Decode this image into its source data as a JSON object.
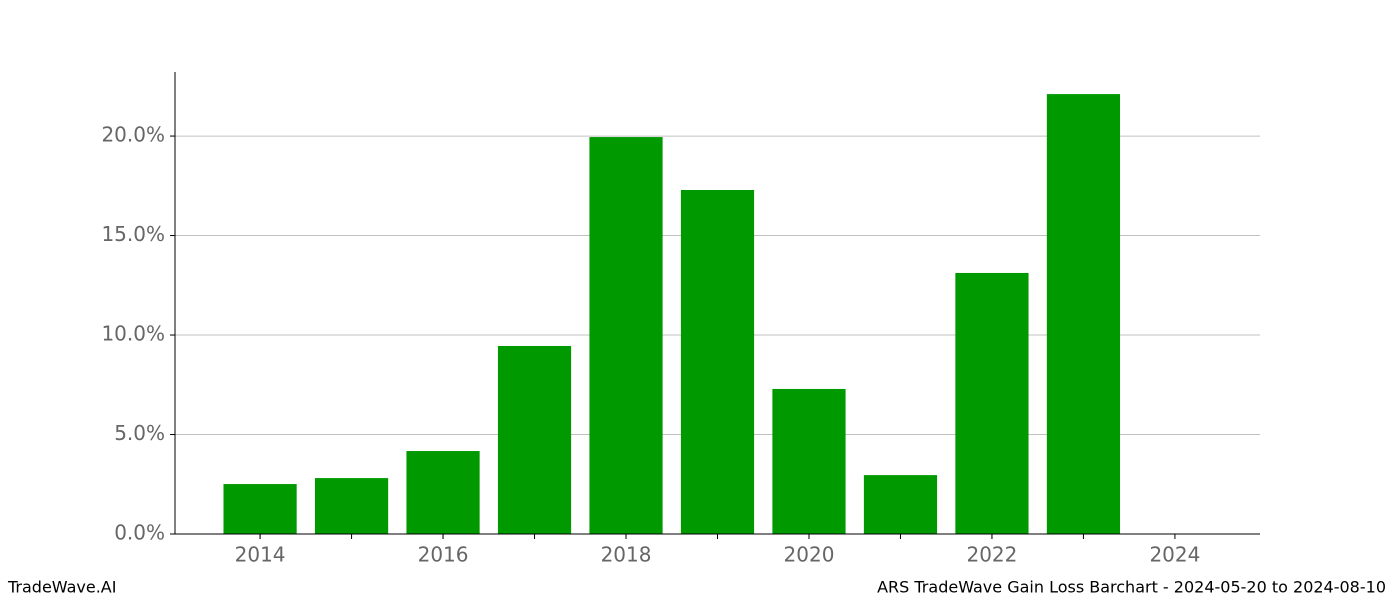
{
  "chart_data": {
    "type": "bar",
    "title": "ARS TradeWave Gain Loss Barchart - 2024-05-20 to 2024-08-10",
    "watermark": "TradeWave.AI",
    "x": [
      2014,
      2015,
      2016,
      2017,
      2018,
      2019,
      2020,
      2021,
      2022,
      2023
    ],
    "values": [
      2.51,
      2.81,
      4.17,
      9.45,
      19.95,
      17.29,
      7.29,
      2.96,
      13.12,
      22.11
    ],
    "color": "#009900",
    "xlim": [
      2013.07,
      2024.93
    ],
    "xticks": [
      2014,
      2016,
      2018,
      2020,
      2022,
      2024
    ],
    "ylim": [
      0,
      23.22
    ],
    "yticks": [
      {
        "value": 0,
        "label": "0.0%"
      },
      {
        "value": 5,
        "label": "5.0%"
      },
      {
        "value": 10,
        "label": "10.0%"
      },
      {
        "value": 15,
        "label": "15.0%"
      },
      {
        "value": 20,
        "label": "20.0%"
      }
    ],
    "grid": true
  }
}
